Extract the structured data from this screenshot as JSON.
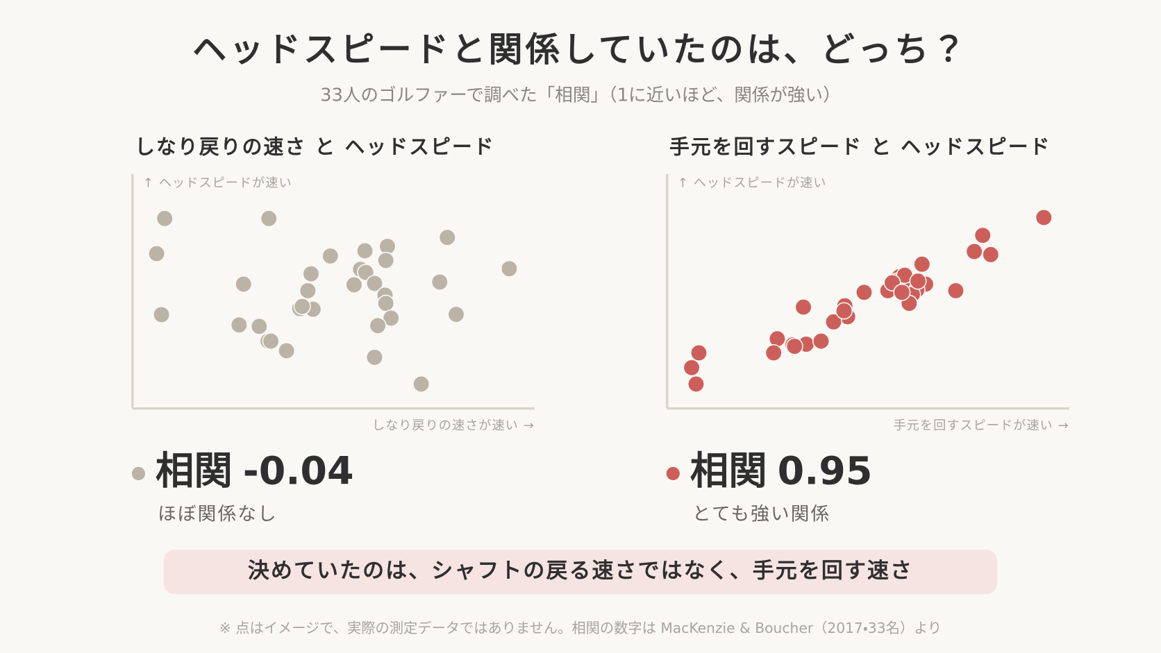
{
  "title": "ヘッドスピードと関係していたのは、どっち？",
  "subtitle": "33人のゴルファーで調べた「相関」（1に近いほど、関係が強い）",
  "conclusion": "決めていたのは、シャフトの戻る速さではなく、手元を回す速さ",
  "footnote": "※ 点はイメージで、実際の測定データではありません。相関の数字は MacKenzie & Boucher（2017・33名）より",
  "chart_data": [
    {
      "type": "scatter",
      "title": "しなり戻りの速さ と ヘッドスピード",
      "y_label": "↑ ヘッドスピードが速い",
      "x_label": "しなり戻りの速さが速い →",
      "color": "#bab3a6",
      "xlim": [
        0,
        100
      ],
      "ylim": [
        0,
        100
      ],
      "x": [
        8,
        33.9,
        6,
        7.2,
        27.6,
        26.5,
        31.5,
        33.7,
        34.4,
        38.3,
        44.4,
        43.6,
        41.6,
        44.9,
        49.2,
        57.8,
        63.4,
        63,
        56.7,
        58,
        55.1,
        60.2,
        62.8,
        63,
        64.3,
        61,
        60.2,
        71.8,
        76.4,
        78.3,
        80.5,
        93.7,
        42.2
      ],
      "values": [
        81,
        81,
        66,
        40,
        53,
        35.6,
        35,
        28.7,
        28.7,
        24.6,
        57.4,
        50.2,
        42.6,
        42.3,
        65,
        67.2,
        69.1,
        63.1,
        59.3,
        58,
        52.7,
        53.3,
        48.3,
        44.8,
        38.5,
        35.3,
        21.8,
        10.4,
        53.9,
        72.9,
        40.1,
        59.6,
        43.5
      ],
      "correlation_label": "相関",
      "correlation": -0.04,
      "description": "ほぼ関係なし"
    },
    {
      "type": "scatter",
      "title": "手元を回すスピード と ヘッドスピード",
      "y_label": "↑ ヘッドスピードが速い",
      "x_label": "手元を回すスピードが速い →",
      "color": "#cd5f5a",
      "xlim": [
        0,
        100
      ],
      "ylim": [
        0,
        100
      ],
      "x": [
        93.7,
        78.5,
        76.4,
        80.5,
        63.4,
        64.3,
        57.8,
        57.3,
        60.2,
        62.1,
        61,
        60.2,
        54.9,
        49,
        44.2,
        44.9,
        41.4,
        33.9,
        27.4,
        26.5,
        31.3,
        34.6,
        38.3,
        7.9,
        6.1,
        7.2,
        71.8,
        59.1,
        56,
        62.4,
        31.7,
        44,
        58.4
      ],
      "values": [
        81.4,
        73.8,
        66.9,
        65.6,
        61.5,
        53,
        56.2,
        54.3,
        54.3,
        50.5,
        48.6,
        44.8,
        50.2,
        49.5,
        43.8,
        39.1,
        36.9,
        43.2,
        29.7,
        23.7,
        27.1,
        27.4,
        28.7,
        23.7,
        17.4,
        10.4,
        50.2,
        56.8,
        53.6,
        54.3,
        26.5,
        41.6,
        49.5
      ],
      "correlation_label": "相関",
      "correlation": 0.95,
      "description": "とても強い関係"
    }
  ]
}
